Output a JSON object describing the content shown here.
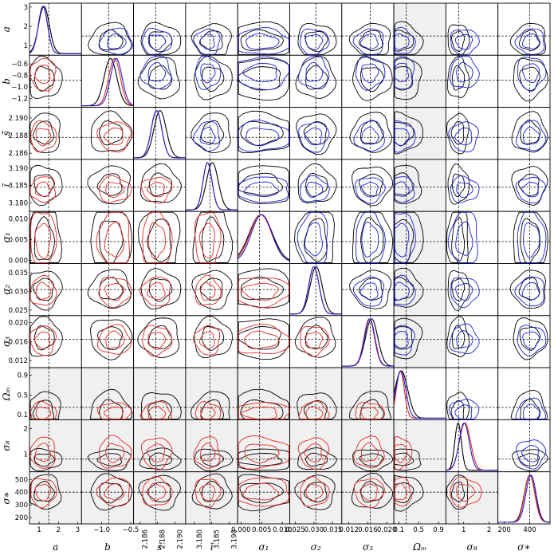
{
  "chart_data": {
    "type": "corner",
    "title": "",
    "parameters": [
      {
        "key": "a",
        "label": "a",
        "range": [
          0.5,
          3.2
        ],
        "truth": 1.5,
        "ticks": [
          "1",
          "2",
          "3"
        ],
        "tick_values": [
          1,
          2,
          3
        ]
      },
      {
        "key": "b",
        "label": "b",
        "range": [
          -1.35,
          -0.45
        ],
        "truth": -0.88,
        "ticks": [
          "−1.2",
          "−1.0",
          "−0.8",
          "−0.6"
        ],
        "tick_values": [
          -1.2,
          -1.0,
          -0.8,
          -0.6
        ],
        "xticks": [
          "−1.0",
          "−0.5"
        ],
        "xtick_values": [
          -1.0,
          -0.5
        ]
      },
      {
        "key": "s_tilde",
        "label": "s̃",
        "range": [
          2.1853,
          2.1912
        ],
        "truth": 2.1878,
        "ticks": [
          "2.186",
          "2.188",
          "2.190"
        ],
        "tick_values": [
          2.186,
          2.188,
          2.19
        ]
      },
      {
        "key": "i_tilde",
        "label": "ĩ",
        "range": [
          3.1775,
          3.1925
        ],
        "truth": 3.1845,
        "ticks": [
          "3.180",
          "3.185",
          "3.190"
        ],
        "tick_values": [
          3.18,
          3.185,
          3.19
        ]
      },
      {
        "key": "sigma1",
        "label": "σ₁",
        "range": [
          -0.0008,
          0.0118
        ],
        "truth": 0.0045,
        "ticks": [
          "0.000",
          "0.005",
          "0.010"
        ],
        "tick_values": [
          0.0,
          0.005,
          0.01
        ]
      },
      {
        "key": "sigma2",
        "label": "σ₂",
        "range": [
          0.0235,
          0.0375
        ],
        "truth": 0.0305,
        "ticks": [
          "0.025",
          "0.030",
          "0.035"
        ],
        "tick_values": [
          0.025,
          0.03,
          0.035
        ]
      },
      {
        "key": "sigma3",
        "label": "σ₃",
        "range": [
          0.0105,
          0.0215
        ],
        "truth": 0.0165,
        "ticks": [
          "0.012",
          "0.016",
          "0.020"
        ],
        "tick_values": [
          0.012,
          0.016,
          0.02
        ]
      },
      {
        "key": "omega_m",
        "label": "Ωₘ",
        "range": [
          0.0,
          1.05
        ],
        "truth": 0.25,
        "ticks": [
          "0.1",
          "0.5",
          "0.9"
        ],
        "tick_values": [
          0.1,
          0.5,
          0.9
        ]
      },
      {
        "key": "sigma8",
        "label": "σ₈",
        "range": [
          0.3,
          2.35
        ],
        "truth": 0.8,
        "ticks": [
          "1",
          "2"
        ],
        "tick_values": [
          1,
          2
        ]
      },
      {
        "key": "sigma_star",
        "label": "σ∗",
        "range": [
          150,
          560
        ],
        "truth": 400,
        "ticks": [
          "200",
          "300",
          "400",
          "500"
        ],
        "tick_values": [
          200,
          300,
          400,
          500
        ],
        "xticks": [
          "200",
          "400"
        ],
        "xtick_values": [
          200,
          400
        ]
      }
    ],
    "series": [
      {
        "color": "#000000"
      },
      {
        "color": "#e8281e"
      },
      {
        "color": "#1c1cd8"
      }
    ],
    "marginals_1d": [
      {
        "center": [
          1.25,
          1.2,
          1.2
        ],
        "width": [
          0.28,
          0.24,
          0.24
        ]
      },
      {
        "center": [
          -0.85,
          -0.78,
          -0.75
        ],
        "width": [
          0.11,
          0.1,
          0.1
        ]
      },
      {
        "center": [
          2.1883,
          2.1879,
          2.1879
        ],
        "width": [
          0.0007,
          0.0006,
          0.0006
        ]
      },
      {
        "center": [
          3.1852,
          3.1838,
          3.1838
        ],
        "width": [
          0.0017,
          0.0013,
          0.0013
        ]
      },
      {
        "center": [
          0.0048,
          0.0048,
          0.005
        ],
        "width": [
          0.0028,
          0.0026,
          0.0025
        ]
      },
      {
        "center": [
          0.0306,
          0.03,
          0.03
        ],
        "width": [
          0.0016,
          0.0014,
          0.0014
        ]
      },
      {
        "center": [
          0.0168,
          0.0163,
          0.0164
        ],
        "width": [
          0.0013,
          0.0011,
          0.0011
        ]
      },
      {
        "center": [
          0.15,
          0.13,
          0.14
        ],
        "width": [
          0.13,
          0.08,
          0.1
        ]
      },
      {
        "center": [
          0.78,
          1.05,
          1.02
        ],
        "width": [
          0.13,
          0.22,
          0.2
        ]
      },
      {
        "center": [
          400,
          400,
          410
        ],
        "width": [
          42,
          40,
          40
        ]
      }
    ],
    "upper_shaded_columns": [
      "omega_m"
    ],
    "lower_shaded_rows": [
      "omega_m",
      "sigma8",
      "sigma_star"
    ],
    "grid": false,
    "legend": "none"
  }
}
